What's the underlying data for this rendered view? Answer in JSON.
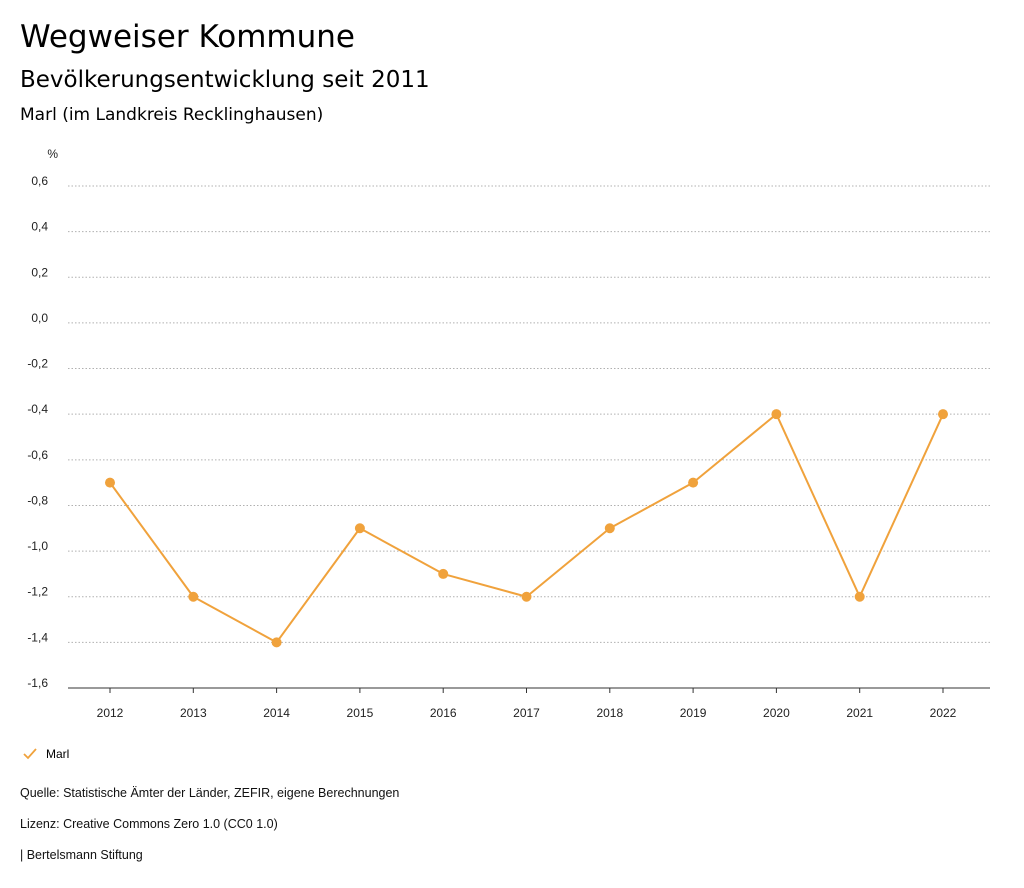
{
  "header": {
    "title": "Wegweiser Kommune",
    "subtitle": "Bevölkerungsentwicklung seit 2011",
    "region": "Marl (im Landkreis Recklinghausen)"
  },
  "chart_data": {
    "type": "line",
    "title": "Bevölkerungsentwicklung seit 2011",
    "xlabel": "",
    "ylabel": "%",
    "categories": [
      "2012",
      "2013",
      "2014",
      "2015",
      "2016",
      "2017",
      "2018",
      "2019",
      "2020",
      "2021",
      "2022"
    ],
    "series": [
      {
        "name": "Marl",
        "color": "#f0a23c",
        "values": [
          -0.7,
          -1.2,
          -1.4,
          -0.9,
          -1.1,
          -1.2,
          -0.9,
          -0.7,
          -0.4,
          -1.2,
          -0.4
        ]
      }
    ],
    "ylim": [
      -1.6,
      0.6
    ],
    "yticks": [
      0.6,
      0.4,
      0.2,
      0.0,
      -0.2,
      -0.4,
      -0.6,
      -0.8,
      -1.0,
      -1.2,
      -1.4,
      -1.6
    ],
    "ytick_labels": [
      "0,6",
      "0,4",
      "0,2",
      "0,0",
      "-0,2",
      "-0,4",
      "-0,6",
      "-0,8",
      "-1,0",
      "-1,2",
      "-1,4",
      "-1,6"
    ],
    "grid": true,
    "legend_position": "bottom-left"
  },
  "legend": {
    "icon": "check-icon",
    "label": "Marl"
  },
  "footer": {
    "source": "Quelle: Statistische Ämter der Länder, ZEFIR, eigene Berechnungen",
    "license": "Lizenz: Creative Commons Zero 1.0 (CC0 1.0)",
    "publisher": "| Bertelsmann Stiftung"
  }
}
